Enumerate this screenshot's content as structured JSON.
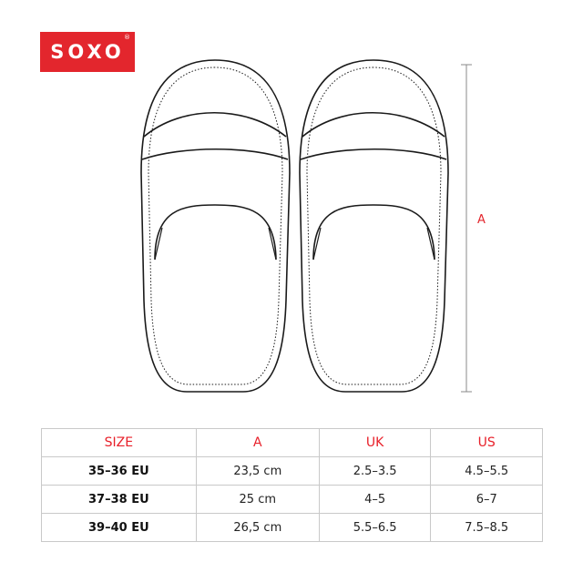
{
  "brand": {
    "name": "SOXO",
    "registered_mark": "®",
    "color": "#e3262d"
  },
  "dimension_label": "A",
  "table": {
    "headers": [
      "SIZE",
      "A",
      "UK",
      "US"
    ],
    "rows": [
      [
        "35–36 EU",
        "23,5 cm",
        "2.5–3.5",
        "4.5–5.5"
      ],
      [
        "37–38 EU",
        "25 cm",
        "4–5",
        "6–7"
      ],
      [
        "39–40 EU",
        "26,5 cm",
        "5.5–6.5",
        "7.5–8.5"
      ]
    ]
  }
}
